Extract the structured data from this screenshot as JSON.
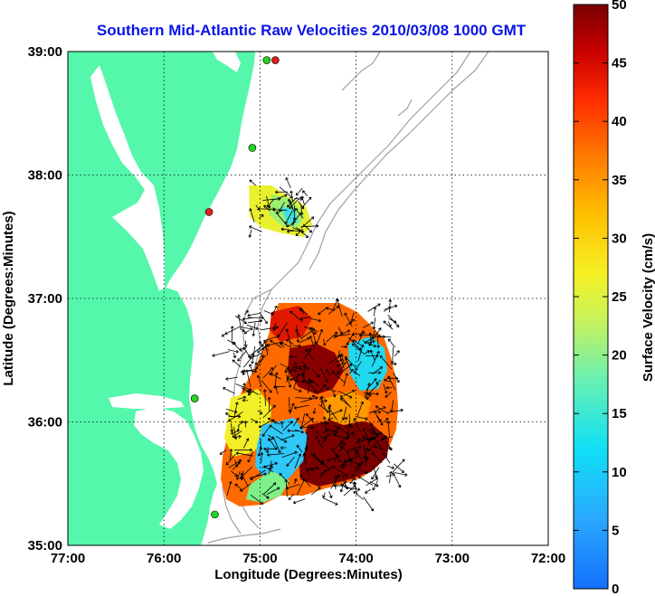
{
  "title": "Southern Mid-Atlantic Raw Velocities 2010/03/08 1000 GMT",
  "x_axis": {
    "label": "Longitude (Degrees:Minutes)",
    "ticks": [
      "77:00",
      "76:00",
      "75:00",
      "74:00",
      "73:00",
      "72:00"
    ],
    "range": [
      -77,
      -72
    ]
  },
  "y_axis": {
    "label": "Latitude (Degrees:Minutes)",
    "ticks": [
      "35:00",
      "36:00",
      "37:00",
      "38:00",
      "39:00"
    ],
    "range": [
      35,
      39
    ]
  },
  "colorbar": {
    "label": "Surface Velocity (cm/s)",
    "ticks": [
      "0",
      "5",
      "10",
      "15",
      "20",
      "25",
      "30",
      "35",
      "40",
      "45",
      "50"
    ],
    "range": [
      0,
      50
    ]
  },
  "colors": {
    "land": "#55f7ab",
    "title": "#0a14e6",
    "bathymetry": "#a0a0a0",
    "station_green": "#22d522",
    "station_red": "#e02020"
  },
  "map": {
    "grid": "dotted",
    "stations": [
      {
        "status": "red",
        "lon": -74.84,
        "lat": 38.93
      },
      {
        "status": "green",
        "lon": -74.93,
        "lat": 38.93
      },
      {
        "status": "green",
        "lon": -75.08,
        "lat": 38.22
      },
      {
        "status": "red",
        "lon": -75.53,
        "lat": 37.7
      },
      {
        "status": "green",
        "lon": -75.68,
        "lat": 36.19
      },
      {
        "status": "green",
        "lon": -75.47,
        "lat": 35.25
      }
    ]
  }
}
